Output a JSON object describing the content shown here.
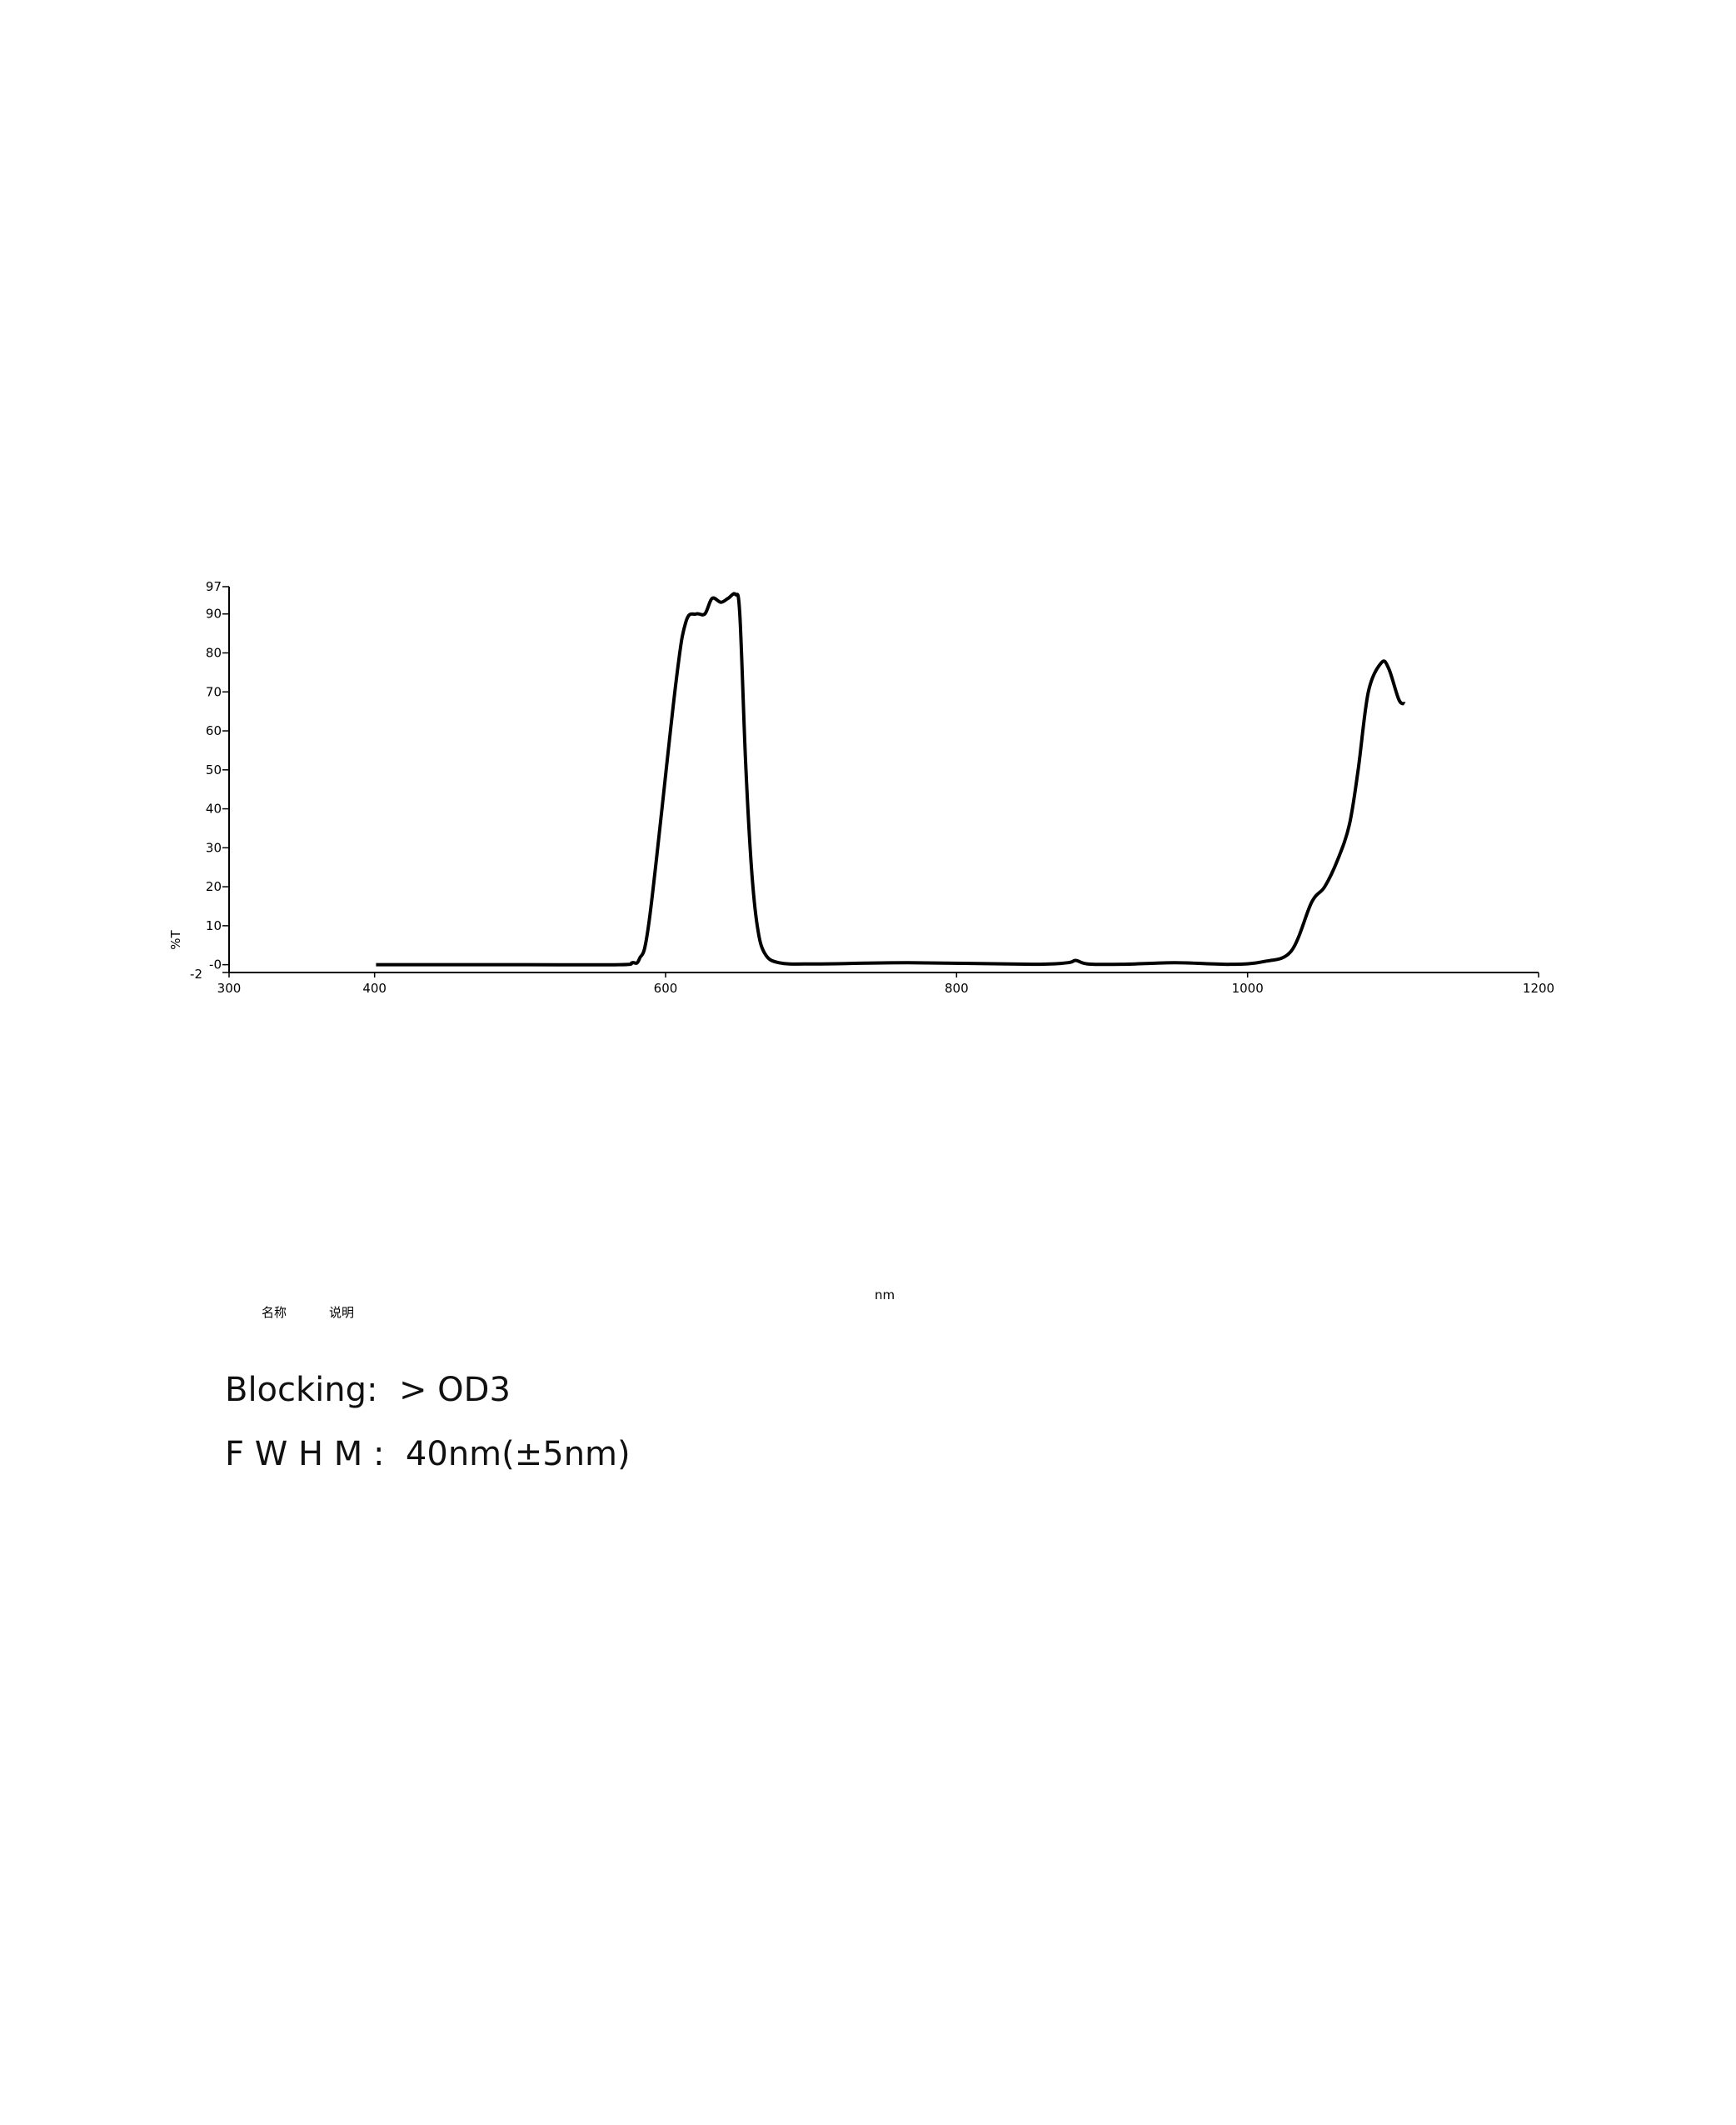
{
  "chart_data": {
    "type": "line",
    "title": "",
    "xlabel": "nm",
    "ylabel": "%T",
    "xlim": [
      300,
      1200
    ],
    "ylim": [
      -2,
      97
    ],
    "x_ticks": [
      300,
      400,
      600,
      800,
      1000,
      1200
    ],
    "x_tick_labels": [
      "300",
      "400",
      "600",
      "800",
      "1000",
      "1200"
    ],
    "y_ticks": [
      -2,
      0,
      10,
      20,
      30,
      40,
      50,
      60,
      70,
      80,
      90,
      97
    ],
    "y_tick_labels": [
      "-2",
      "-0",
      "10",
      "20",
      "30",
      "40",
      "50",
      "60",
      "70",
      "80",
      "90",
      "97"
    ],
    "grid": false,
    "line_color": "#000000",
    "legend_labels": [
      "名称",
      "说明"
    ],
    "series": [
      {
        "x": [
          401,
          500,
          568,
          577,
          582,
          589,
          607,
          614,
          621,
          627,
          632,
          638,
          643,
          648,
          651,
          655,
          659,
          663,
          668,
          678,
          704,
          767,
          852,
          876,
          882,
          890,
          913,
          950,
          988,
          1011,
          1030,
          1044,
          1053,
          1062,
          1070,
          1076,
          1083,
          1092,
          1097,
          1104,
          1108
        ],
        "y": [
          0,
          0,
          0,
          0.5,
          1.5,
          12,
          72,
          88,
          90,
          90,
          94,
          93,
          94,
          95,
          90,
          52,
          25,
          10,
          3,
          0.5,
          0.2,
          0.5,
          0.1,
          0.5,
          1.1,
          0.2,
          0.1,
          0.5,
          0.1,
          0.8,
          3.5,
          16,
          20,
          27,
          36,
          50,
          70,
          77.5,
          76,
          68,
          67
        ]
      }
    ]
  },
  "specs": {
    "blocking": "Blocking:  > OD3",
    "fwhm": "F W H M :  40nm(±5nm)"
  }
}
